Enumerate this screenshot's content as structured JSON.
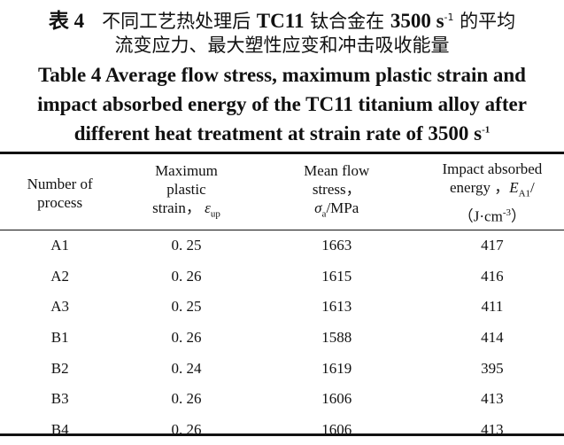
{
  "caption": {
    "zh_label": "表 4",
    "zh_line1_a": "不同工艺热处理后 ",
    "zh_line1_b": "TC11",
    "zh_line1_c": " 钛合金在 ",
    "zh_line1_d": "3500 s",
    "zh_line1_sup": "-1",
    "zh_line1_e": " 的平均",
    "zh_line2": "流变应力、最大塑性应变和冲击吸收能量",
    "en_line1": "Table 4   Average flow stress, maximum plastic strain and",
    "en_line2": "impact absorbed energy of the TC11 titanium alloy after",
    "en_line3": "different heat treatment at strain rate of 3500 s",
    "en_line3_sup": "-1"
  },
  "table": {
    "headers": [
      {
        "lines": [
          "Number of",
          "process"
        ]
      },
      {
        "lines": [
          "Maximum",
          "plastic",
          "strain，"
        ],
        "symbol": "ε",
        "sub": "up"
      },
      {
        "lines": [
          "Mean flow",
          "stress，"
        ],
        "symbol": "σ",
        "sub": "a",
        "unit": "/MPa"
      },
      {
        "lines": [
          "Impact absorbed",
          "energy ，"
        ],
        "symbol": "E",
        "sub": "A1",
        "unit": "/",
        "unit2": "（J·cm",
        "unit2_sup": "-3",
        "unit2_end": "）"
      }
    ],
    "rows": [
      [
        "A1",
        "0. 25",
        "1663",
        "417"
      ],
      [
        "A2",
        "0. 26",
        "1615",
        "416"
      ],
      [
        "A3",
        "0. 25",
        "1613",
        "411"
      ],
      [
        "B1",
        "0. 26",
        "1588",
        "414"
      ],
      [
        "B2",
        "0. 24",
        "1619",
        "395"
      ],
      [
        "B3",
        "0. 26",
        "1606",
        "413"
      ],
      [
        "B4",
        "0. 26",
        "1606",
        "413"
      ]
    ]
  }
}
